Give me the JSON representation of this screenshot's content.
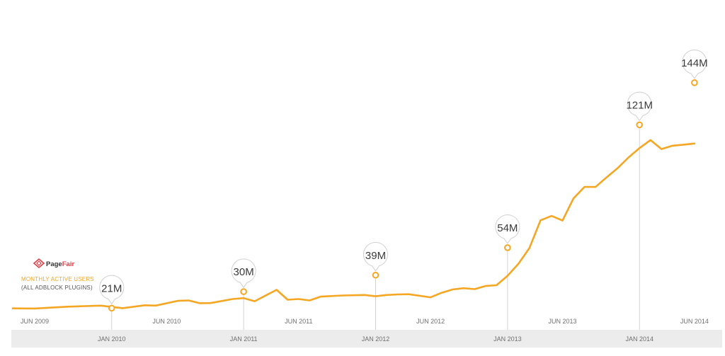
{
  "colors": {
    "line": "#f5a623",
    "axis_band": "#ececec",
    "guide": "#d4d4d4",
    "callout_stroke": "#cfcfcf",
    "logo_red": "#d9414a",
    "text_dark": "#333333",
    "text_tick": "#6f6f6f"
  },
  "logo": {
    "icon": "pagefair-logo-icon",
    "text_part1": "Page",
    "text_part2": "Fair"
  },
  "legend": {
    "title": "MONTHLY ACTIVE USERS",
    "subtitle": "(ALL ADBLOCK PLUGINS)"
  },
  "chart_data": {
    "type": "line",
    "series": [
      {
        "x": [
          "2009-04",
          "2009-06",
          "2009-09",
          "2009-12",
          "2010-02",
          "2010-04",
          "2010-05",
          "2010-07",
          "2010-08",
          "2010-09",
          "2010-10",
          "2010-12",
          "2011-01",
          "2011-02",
          "2011-04",
          "2011-05",
          "2011-06",
          "2011-07",
          "2011-08",
          "2011-10",
          "2011-12",
          "2012-01",
          "2012-02",
          "2012-03",
          "2012-04",
          "2012-06",
          "2012-07",
          "2012-08",
          "2012-09",
          "2012-10",
          "2012-11",
          "2012-12",
          "2013-01",
          "2013-02",
          "2013-03",
          "2013-04",
          "2013-05",
          "2013-06",
          "2013-07",
          "2013-08",
          "2013-09",
          "2013-10",
          "2013-11",
          "2013-12",
          "2014-01",
          "2014-02",
          "2014-03",
          "2014-04",
          "2014-05",
          "2014-06"
        ],
        "values": [
          20.9,
          20.8,
          21.8,
          22.4,
          21.0,
          22.6,
          22.4,
          25.0,
          25.2,
          23.7,
          23.8,
          26.0,
          26.5,
          24.8,
          31.0,
          25.6,
          26.0,
          25.2,
          27.3,
          27.9,
          28.2,
          27.5,
          28.2,
          28.5,
          28.6,
          26.9,
          29.4,
          31.2,
          31.9,
          31.4,
          33.1,
          33.5,
          38.7,
          45.3,
          53.9,
          68.9,
          71.3,
          68.8,
          80.9,
          87.2,
          87.1,
          92.3,
          97.3,
          103.2,
          108.3,
          112.7,
          107.8,
          109.6,
          110.2,
          110.8
        ],
        "values_note_skip": ""
      }
    ],
    "ylim": [
      0,
      150
    ],
    "x_ticks_upper": [
      "JUN 2009",
      "JUN 2010",
      "JUN 2011",
      "JUN 2012",
      "JUN 2013",
      "JUN 2014"
    ],
    "x_ticks_lower": [
      "JAN 2010",
      "JAN 2011",
      "JAN 2012",
      "JAN 2013",
      "JAN 2014"
    ],
    "callouts": [
      {
        "label": "21M",
        "x": "2010-01",
        "value": 21
      },
      {
        "label": "30M",
        "x": "2011-01",
        "value": 30
      },
      {
        "label": "39M",
        "x": "2012-01",
        "value": 39
      },
      {
        "label": "54M",
        "x": "2013-01",
        "value": 54
      },
      {
        "label": "121M",
        "x": "2014-01",
        "value": 121
      },
      {
        "label": "144M",
        "x": "2014-06",
        "value": 144
      }
    ],
    "grid": false,
    "legend_position": "left"
  }
}
